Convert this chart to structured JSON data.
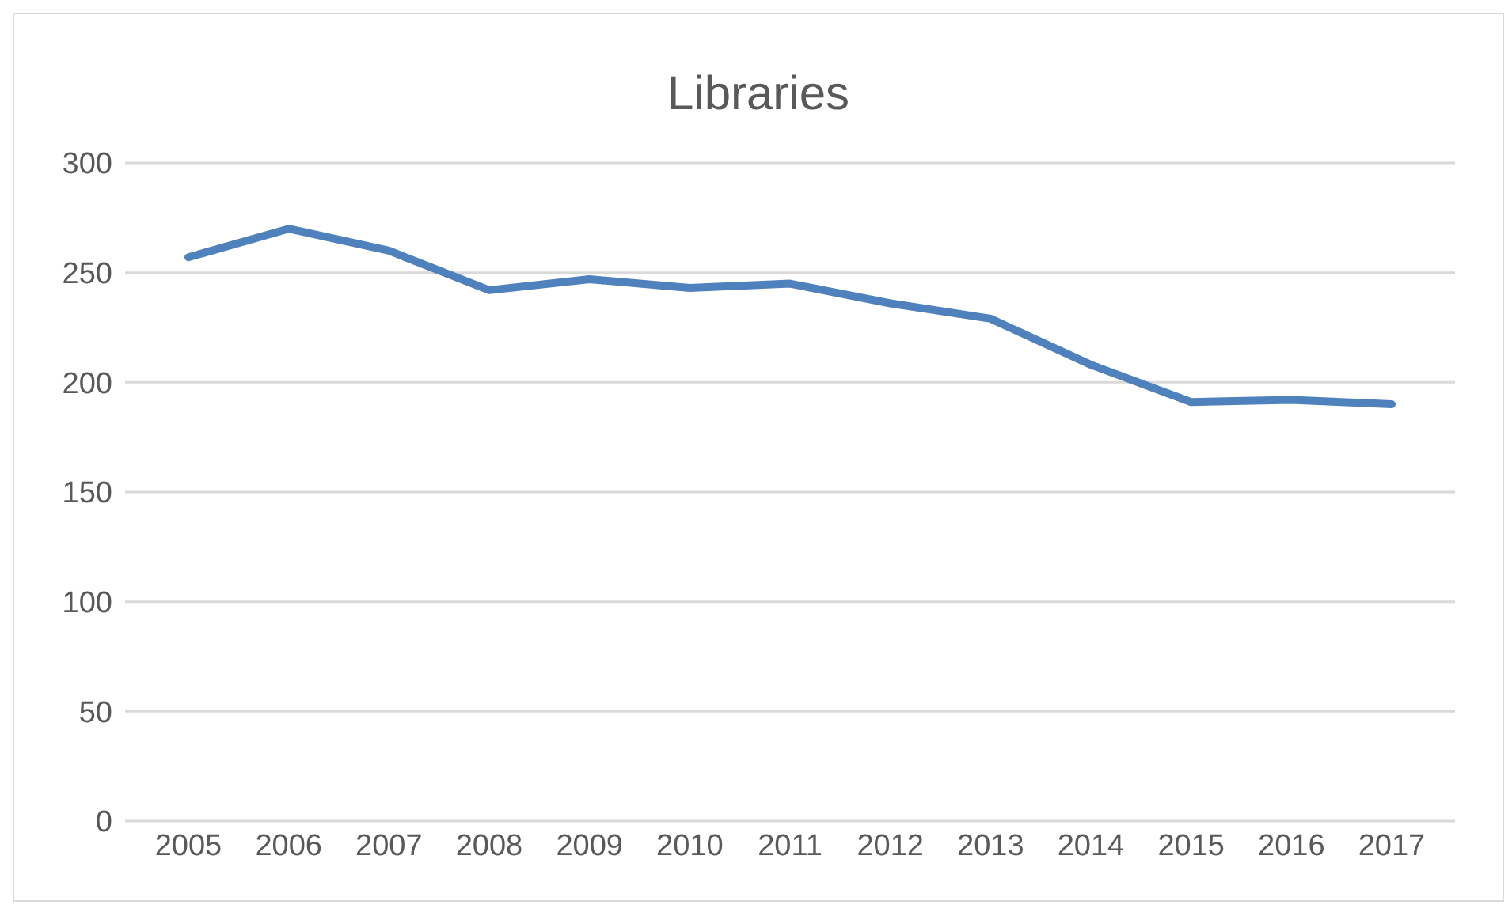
{
  "chart_data": {
    "type": "line",
    "title": "Libraries",
    "categories": [
      "2005",
      "2006",
      "2007",
      "2008",
      "2009",
      "2010",
      "2011",
      "2012",
      "2013",
      "2014",
      "2015",
      "2016",
      "2017"
    ],
    "series": [
      {
        "color": "#4f81bd",
        "values": [
          257,
          270,
          260,
          242,
          247,
          243,
          245,
          236,
          229,
          208,
          191,
          192,
          190
        ]
      }
    ],
    "ylim": [
      0,
      300
    ],
    "yticks": [
      0,
      50,
      100,
      150,
      200,
      250,
      300
    ],
    "grid": "y",
    "legend": false,
    "marker": "none",
    "line_style": "solid"
  }
}
